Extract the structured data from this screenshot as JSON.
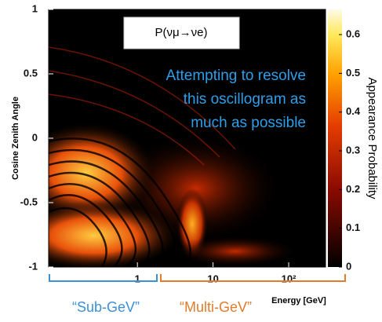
{
  "chart_data": {
    "type": "heatmap",
    "title": "P(νμ→νe)",
    "annotation": [
      "Attempting to resolve",
      "this oscillogram as",
      "much as possible"
    ],
    "y_label": "Cosine Zenith Angle",
    "x_label": "Energy [GeV]",
    "colorbar_label": "Appearance Probability",
    "log_x": true,
    "xlim": [
      0.067,
      307
    ],
    "xticks": [
      1,
      10,
      {
        "value": 100,
        "label": "10²"
      }
    ],
    "ylim": [
      -1,
      1
    ],
    "yticks": [
      -1,
      -0.5,
      0,
      0.5,
      1
    ],
    "clim": [
      0,
      0.665
    ],
    "cticks": [
      0,
      0.1,
      0.2,
      0.3,
      0.4,
      0.5,
      0.6
    ],
    "ranges": [
      {
        "label": "“Sub-GeV”",
        "color": "#3d8fd6"
      },
      {
        "label": "“Multi-GeV”",
        "color": "#e27b2c"
      }
    ]
  }
}
